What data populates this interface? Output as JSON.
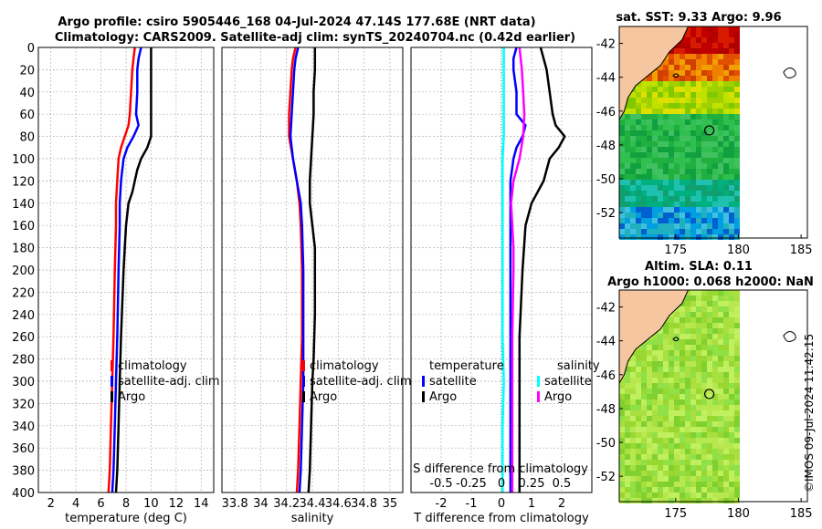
{
  "header": {
    "title_line1": "Argo profile: csiro 5905446_168 04-Jul-2024 47.14S 177.68E (NRT data)",
    "title_line2": "Climatology: CARS2009. Satellite-adj clim: synTS_20240704.nc (0.42d earlier)"
  },
  "colors": {
    "climatology": "#ff0000",
    "satellite": "#0000ff",
    "argo": "#000000",
    "s_satellite": "#00ffff",
    "s_argo": "#ff00ff",
    "grid": "#b0b0b0",
    "land": "#f5c6a0"
  },
  "legends": {
    "temp_panel": [
      "climatology",
      "satellite-adj. clim",
      "Argo"
    ],
    "sal_panel": [
      "climatology",
      "satellite-adj. clim",
      "Argo"
    ],
    "diff_panel": {
      "temperature_heading": "temperature",
      "temperature_items": [
        "satellite",
        "Argo"
      ],
      "salinity_heading": "salinity",
      "salinity_items": [
        "satellite",
        "Argo"
      ]
    }
  },
  "maps": {
    "sst_title": "sat. SST: 9.33 Argo: 9.96",
    "sla_title_line1": "Altim. SLA: 0.11",
    "sla_title_line2": "Argo h1000: 0.068 h2000: NaN",
    "lat_ticks": [
      "-42",
      "-44",
      "-46",
      "-48",
      "-50",
      "-52"
    ],
    "lon_ticks": [
      "175",
      "180",
      "185"
    ],
    "float_position": {
      "lon": 177.68,
      "lat": -47.14
    }
  },
  "copyright": "©IMOS 09-Jul-2024 11:42:15",
  "chart_data": [
    {
      "type": "line",
      "panel": "temperature",
      "xlabel": "temperature (deg C)",
      "ylabel": "",
      "xlim": [
        1,
        15
      ],
      "ylim": [
        400,
        0
      ],
      "xticks": [
        "2",
        "4",
        "6",
        "8",
        "10",
        "12",
        "14"
      ],
      "yticks": [
        "0",
        "20",
        "40",
        "60",
        "80",
        "100",
        "120",
        "140",
        "160",
        "180",
        "200",
        "220",
        "240",
        "260",
        "280",
        "300",
        "320",
        "340",
        "360",
        "380",
        "400"
      ],
      "series": [
        {
          "name": "climatology",
          "depth": [
            0,
            10,
            20,
            40,
            60,
            70,
            80,
            90,
            100,
            120,
            140,
            160,
            200,
            260,
            300,
            340,
            380,
            400
          ],
          "values": [
            8.7,
            8.6,
            8.5,
            8.4,
            8.3,
            8.2,
            7.9,
            7.6,
            7.4,
            7.3,
            7.2,
            7.2,
            7.1,
            7.0,
            6.9,
            6.8,
            6.7,
            6.6
          ]
        },
        {
          "name": "satellite-adj. clim",
          "depth": [
            0,
            10,
            20,
            40,
            60,
            70,
            80,
            90,
            100,
            120,
            140,
            160,
            200,
            260,
            300,
            340,
            380,
            400
          ],
          "values": [
            9.2,
            9.0,
            8.9,
            8.9,
            8.8,
            9.0,
            8.6,
            8.1,
            7.8,
            7.6,
            7.5,
            7.5,
            7.4,
            7.3,
            7.2,
            7.1,
            7.0,
            6.9
          ]
        },
        {
          "name": "Argo",
          "depth": [
            0,
            10,
            20,
            40,
            60,
            70,
            80,
            90,
            100,
            110,
            120,
            130,
            140,
            160,
            180,
            200,
            230,
            260,
            300,
            340,
            380,
            400
          ],
          "values": [
            10.0,
            10.0,
            10.0,
            10.0,
            10.0,
            10.0,
            10.0,
            9.7,
            9.2,
            8.9,
            8.7,
            8.5,
            8.2,
            8.0,
            7.9,
            7.8,
            7.7,
            7.6,
            7.5,
            7.4,
            7.3,
            7.2
          ]
        }
      ]
    },
    {
      "type": "line",
      "panel": "salinity",
      "xlabel": "salinity",
      "ylabel": "",
      "xlim": [
        33.7,
        35.1
      ],
      "ylim": [
        400,
        0
      ],
      "xticks": [
        "33.8",
        "34",
        "34.2",
        "34.4",
        "34.6",
        "34.8",
        "35"
      ],
      "series": [
        {
          "name": "climatology",
          "depth": [
            0,
            10,
            20,
            40,
            60,
            80,
            100,
            120,
            140,
            160,
            200,
            260,
            300,
            340,
            380,
            400
          ],
          "values": [
            34.27,
            34.25,
            34.24,
            34.23,
            34.22,
            34.22,
            34.25,
            34.28,
            34.3,
            34.31,
            34.32,
            34.32,
            34.31,
            34.3,
            34.29,
            34.28
          ]
        },
        {
          "name": "satellite-adj. clim",
          "depth": [
            0,
            10,
            20,
            40,
            60,
            80,
            100,
            120,
            140,
            160,
            200,
            260,
            300,
            340,
            380,
            400
          ],
          "values": [
            34.29,
            34.27,
            34.26,
            34.25,
            34.24,
            34.23,
            34.25,
            34.28,
            34.31,
            34.32,
            34.33,
            34.33,
            34.33,
            34.32,
            34.31,
            34.3
          ]
        },
        {
          "name": "Argo",
          "depth": [
            0,
            20,
            40,
            60,
            80,
            100,
            120,
            140,
            160,
            180,
            200,
            240,
            280,
            300,
            340,
            380,
            400
          ],
          "values": [
            34.42,
            34.42,
            34.41,
            34.41,
            34.4,
            34.39,
            34.38,
            34.38,
            34.4,
            34.42,
            34.42,
            34.42,
            34.41,
            34.4,
            34.39,
            34.38,
            34.37
          ]
        }
      ]
    },
    {
      "type": "line",
      "panel": "difference",
      "xlabel": "T difference from climatology",
      "xlabel_top": "S difference from climatology",
      "ylabel": "",
      "xlim": [
        -3,
        3
      ],
      "ylim": [
        400,
        0
      ],
      "xticks": [
        "-2",
        "-1",
        "0",
        "1",
        "2"
      ],
      "xticks_top": [
        "-0.5",
        "-0.25",
        "0",
        "0.25",
        "0.5"
      ],
      "series": [
        {
          "name": "T satellite",
          "axis": "T",
          "depth": [
            0,
            10,
            20,
            40,
            60,
            70,
            80,
            90,
            100,
            120,
            140,
            160,
            200,
            260,
            300,
            340,
            380,
            400
          ],
          "values": [
            0.5,
            0.4,
            0.4,
            0.5,
            0.5,
            0.8,
            0.7,
            0.5,
            0.4,
            0.3,
            0.3,
            0.3,
            0.3,
            0.3,
            0.3,
            0.3,
            0.3,
            0.3
          ]
        },
        {
          "name": "T Argo",
          "axis": "T",
          "depth": [
            0,
            10,
            20,
            40,
            60,
            70,
            80,
            90,
            100,
            120,
            140,
            160,
            200,
            260,
            300,
            340,
            380,
            400
          ],
          "values": [
            1.3,
            1.4,
            1.5,
            1.6,
            1.7,
            1.8,
            2.1,
            1.9,
            1.6,
            1.4,
            1.0,
            0.8,
            0.7,
            0.6,
            0.6,
            0.6,
            0.6,
            0.6
          ]
        },
        {
          "name": "S satellite",
          "axis": "S",
          "depth": [
            0,
            20,
            40,
            60,
            80,
            100,
            140,
            200,
            260,
            300,
            340,
            380,
            400
          ],
          "values": [
            0.02,
            0.02,
            0.02,
            0.02,
            0.02,
            0.01,
            0.01,
            0.01,
            0.01,
            0.02,
            0.01,
            0.01,
            0.01
          ]
        },
        {
          "name": "S Argo",
          "axis": "S",
          "depth": [
            0,
            20,
            40,
            60,
            80,
            100,
            120,
            140,
            160,
            180,
            200,
            260,
            300,
            340,
            380,
            400
          ],
          "values": [
            0.15,
            0.17,
            0.18,
            0.19,
            0.18,
            0.15,
            0.1,
            0.08,
            0.09,
            0.1,
            0.1,
            0.09,
            0.09,
            0.09,
            0.09,
            0.09
          ]
        }
      ]
    }
  ]
}
